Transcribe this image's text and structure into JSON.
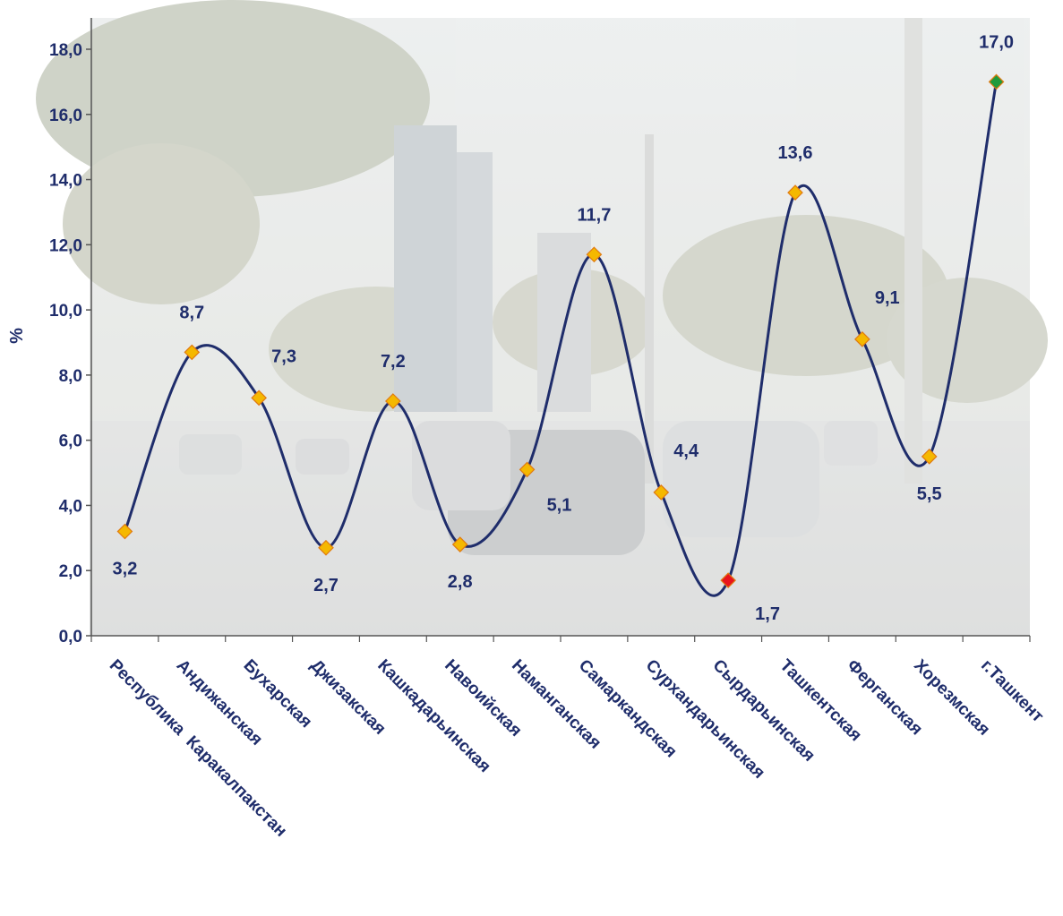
{
  "chart_data": {
    "type": "line",
    "title": "",
    "xlabel": "",
    "ylabel": "%",
    "ylim": [
      0,
      18
    ],
    "y_ticks": [
      "0,0",
      "2,0",
      "4,0",
      "6,0",
      "8,0",
      "10,0",
      "12,0",
      "14,0",
      "16,0",
      "18,0"
    ],
    "categories": [
      "Республика  Каракалпакстан",
      "Андижанская",
      "Бухарская",
      "Джизакская",
      "Кашкадарьинская",
      "Навоийская",
      "Наманганская",
      "Самаркандская",
      "Сурхандарьинская",
      "Сырдарьинская",
      "Ташкентская",
      "Ферганская",
      "Хорезмская",
      "г.Ташкент"
    ],
    "values": [
      3.2,
      8.7,
      7.3,
      2.7,
      7.2,
      2.8,
      5.1,
      11.7,
      4.4,
      1.7,
      13.6,
      9.1,
      5.5,
      17.0
    ],
    "value_labels": [
      "3,2",
      "8,7",
      "7,3",
      "2,7",
      "7,2",
      "2,8",
      "5,1",
      "11,7",
      "4,4",
      "1,7",
      "13,6",
      "9,1",
      "5,5",
      "17,0"
    ],
    "grid": false,
    "legend": "none",
    "colors": {
      "line": "#1f2d6b",
      "marker": "#f5b800",
      "marker_min": "#e8141c",
      "marker_max": "#1e9a3c",
      "text": "#1f2d6b",
      "background_photo": "#c9ccc7"
    },
    "background": "faded street photo (trees, buildings, cars)"
  }
}
